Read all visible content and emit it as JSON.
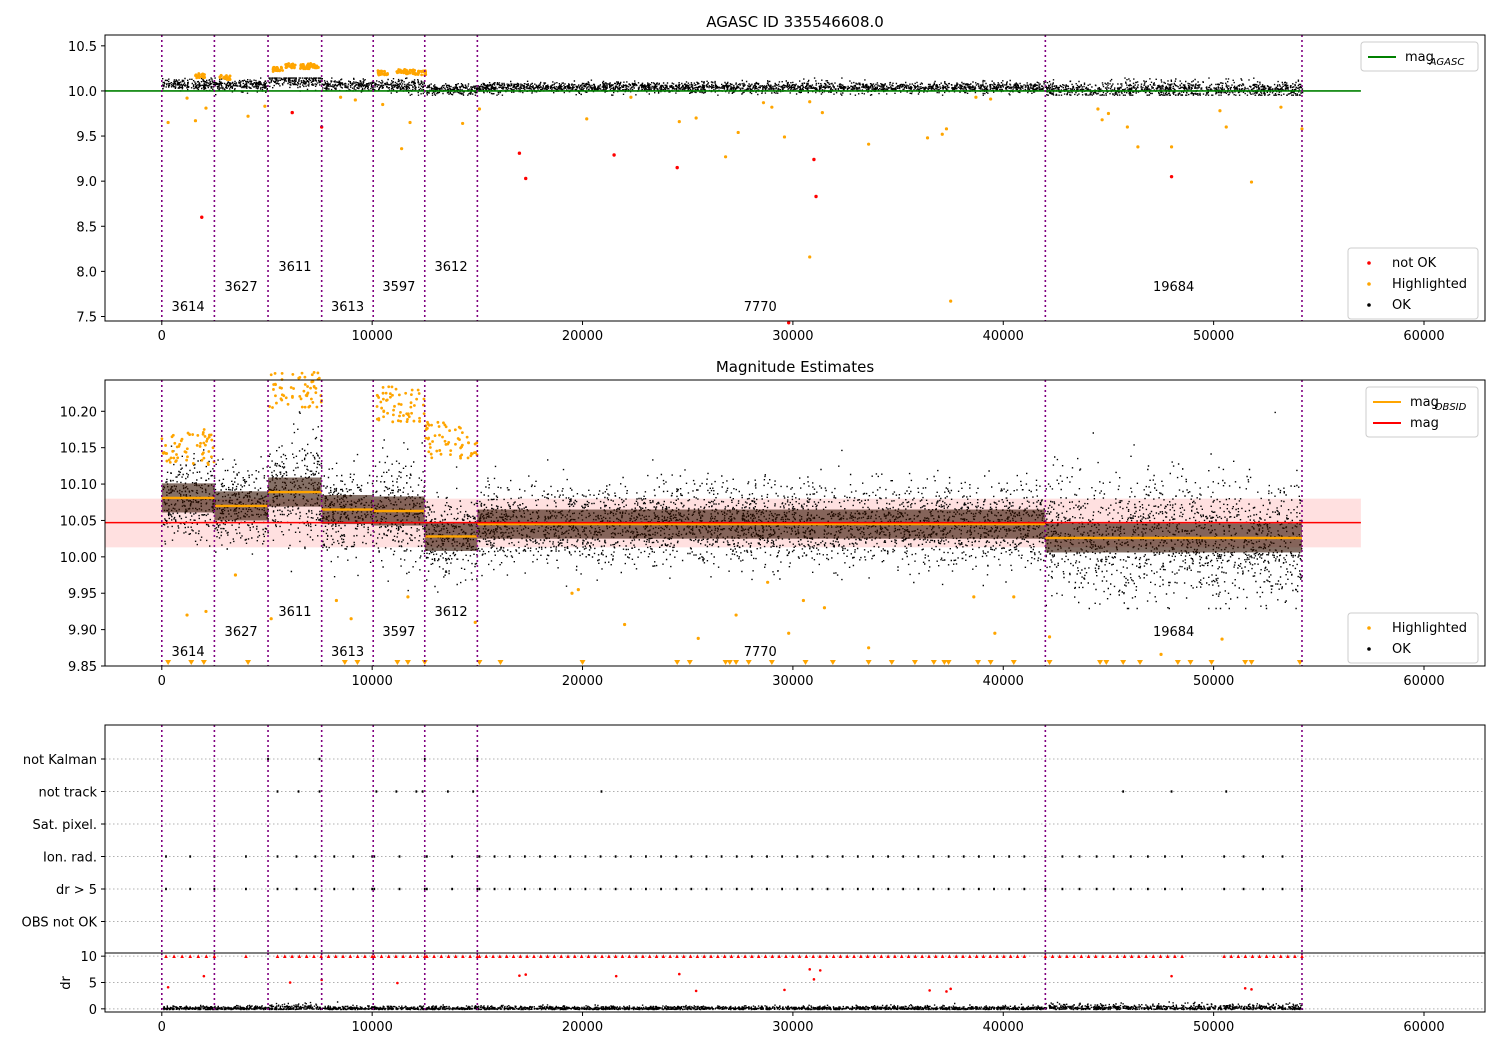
{
  "chart_data": [
    {
      "id": "top",
      "type": "scatter",
      "title": "AGASC ID 335546608.0",
      "xlim": [
        -2700,
        62900
      ],
      "ylim": [
        7.45,
        10.62
      ],
      "xticks": [
        0,
        10000,
        20000,
        30000,
        40000,
        50000,
        60000
      ],
      "yticks": [
        7.5,
        8.0,
        8.5,
        9.0,
        9.5,
        10.0,
        10.5
      ],
      "ytick_labels": [
        "7.5",
        "8.0",
        "8.5",
        "9.0",
        "9.5",
        "10.0",
        "10.5"
      ],
      "reference_line": {
        "name": "mag_AGASC",
        "value": 10.0,
        "x_range": [
          -2700,
          57000
        ],
        "color": "#008000"
      },
      "legend_upper": [
        {
          "label": "mag",
          "subscript": "AGASC",
          "kind": "line",
          "color": "#008000"
        }
      ],
      "legend_lower": [
        {
          "label": "not OK",
          "kind": "point",
          "color": "#ff0000"
        },
        {
          "label": "Highlighted",
          "kind": "point",
          "color": "#ffa500"
        },
        {
          "label": "OK",
          "kind": "point",
          "color": "#000000"
        }
      ],
      "segments": [
        {
          "start": 0,
          "end": 2500,
          "level": 10.08,
          "spread": 0.03
        },
        {
          "start": 2500,
          "end": 5050,
          "level": 10.07,
          "spread": 0.03
        },
        {
          "start": 5050,
          "end": 7600,
          "level": 10.12,
          "spread": 0.04
        },
        {
          "start": 7600,
          "end": 10050,
          "level": 10.07,
          "spread": 0.03
        },
        {
          "start": 10050,
          "end": 12500,
          "level": 10.06,
          "spread": 0.04
        },
        {
          "start": 12500,
          "end": 15000,
          "level": 10.02,
          "spread": 0.03
        },
        {
          "start": 15000,
          "end": 42000,
          "level": 10.045,
          "spread": 0.03
        },
        {
          "start": 42000,
          "end": 54200,
          "level": 10.025,
          "spread": 0.045
        }
      ],
      "highlighted_points": [
        [
          300,
          9.65
        ],
        [
          1200,
          9.92
        ],
        [
          1600,
          9.67
        ],
        [
          2100,
          9.81
        ],
        [
          4100,
          9.72
        ],
        [
          4900,
          9.83
        ],
        [
          8500,
          9.93
        ],
        [
          9200,
          9.9
        ],
        [
          10500,
          9.85
        ],
        [
          11400,
          9.36
        ],
        [
          11800,
          9.65
        ],
        [
          14300,
          9.64
        ],
        [
          15100,
          9.8
        ],
        [
          20200,
          9.69
        ],
        [
          22300,
          9.93
        ],
        [
          24600,
          9.66
        ],
        [
          25400,
          9.7
        ],
        [
          26800,
          9.27
        ],
        [
          27400,
          9.54
        ],
        [
          28600,
          9.87
        ],
        [
          29000,
          9.82
        ],
        [
          29600,
          9.49
        ],
        [
          30800,
          9.88
        ],
        [
          30800,
          8.16
        ],
        [
          31400,
          9.76
        ],
        [
          33600,
          9.41
        ],
        [
          36400,
          9.48
        ],
        [
          37100,
          9.52
        ],
        [
          37300,
          9.58
        ],
        [
          37500,
          7.67
        ],
        [
          38700,
          9.93
        ],
        [
          39400,
          9.91
        ],
        [
          44500,
          9.8
        ],
        [
          44700,
          9.68
        ],
        [
          45000,
          9.75
        ],
        [
          45900,
          9.6
        ],
        [
          46400,
          9.38
        ],
        [
          48000,
          9.38
        ],
        [
          50300,
          9.78
        ],
        [
          50600,
          9.6
        ],
        [
          51800,
          8.99
        ],
        [
          53200,
          9.82
        ],
        [
          54200,
          9.58
        ]
      ],
      "highlighted_bumps": [
        [
          5500,
          10.24
        ],
        [
          6100,
          10.28
        ],
        [
          6800,
          10.27
        ],
        [
          7200,
          10.28
        ],
        [
          10500,
          10.2
        ],
        [
          11400,
          10.22
        ],
        [
          11800,
          10.21
        ],
        [
          12300,
          10.2
        ],
        [
          3000,
          10.15
        ],
        [
          1800,
          10.17
        ]
      ],
      "notok_points": [
        [
          1900,
          8.6
        ],
        [
          6200,
          9.76
        ],
        [
          7600,
          9.6
        ],
        [
          17000,
          9.31
        ],
        [
          17300,
          9.03
        ],
        [
          21500,
          9.29
        ],
        [
          24500,
          9.15
        ],
        [
          29800,
          7.43
        ],
        [
          31000,
          9.24
        ],
        [
          31100,
          8.83
        ],
        [
          48000,
          9.05
        ]
      ],
      "obsid_labels": [
        {
          "text": "3614",
          "x": 1250,
          "row": 3
        },
        {
          "text": "3627",
          "x": 3770,
          "row": 2
        },
        {
          "text": "3611",
          "x": 6330,
          "row": 1
        },
        {
          "text": "3613",
          "x": 8830,
          "row": 3
        },
        {
          "text": "3597",
          "x": 11270,
          "row": 2
        },
        {
          "text": "3612",
          "x": 13750,
          "row": 1
        },
        {
          "text": "7770",
          "x": 28450,
          "row": 3
        },
        {
          "text": "19684",
          "x": 48100,
          "row": 2
        }
      ]
    },
    {
      "id": "mid",
      "type": "scatter",
      "title": "Magnitude Estimates",
      "xlim": [
        -2700,
        62900
      ],
      "ylim": [
        9.85,
        10.243
      ],
      "xticks": [
        0,
        10000,
        20000,
        30000,
        40000,
        50000,
        60000
      ],
      "yticks": [
        9.85,
        9.9,
        9.95,
        10.0,
        10.05,
        10.1,
        10.15,
        10.2
      ],
      "ytick_labels": [
        "9.85",
        "9.90",
        "9.95",
        "10.00",
        "10.05",
        "10.10",
        "10.15",
        "10.20"
      ],
      "mean_line": {
        "name": "mag",
        "value": 10.047,
        "band": [
          10.013,
          10.08
        ],
        "x_range": [
          -2700,
          57000
        ],
        "color": "#ff0000"
      },
      "obsid_mags": [
        {
          "start": 0,
          "end": 2500,
          "value": 10.081
        },
        {
          "start": 2500,
          "end": 5050,
          "value": 10.07
        },
        {
          "start": 5050,
          "end": 7600,
          "value": 10.089
        },
        {
          "start": 7600,
          "end": 10050,
          "value": 10.065
        },
        {
          "start": 10050,
          "end": 12500,
          "value": 10.063
        },
        {
          "start": 12500,
          "end": 15000,
          "value": 10.028
        },
        {
          "start": 15000,
          "end": 42000,
          "value": 10.045
        },
        {
          "start": 42000,
          "end": 54200,
          "value": 10.026
        }
      ],
      "legend_upper": [
        {
          "label": "mag",
          "subscript": "OBSID",
          "kind": "line",
          "color": "#ffa500"
        },
        {
          "label": "mag",
          "subscript": "",
          "kind": "line",
          "color": "#ff0000"
        }
      ],
      "legend_lower": [
        {
          "label": "Highlighted",
          "kind": "point",
          "color": "#ffa500"
        },
        {
          "label": "OK",
          "kind": "point",
          "color": "#000000"
        }
      ],
      "highlighted_points": [
        [
          1200,
          9.92
        ],
        [
          2100,
          9.925
        ],
        [
          3500,
          9.975
        ],
        [
          5200,
          9.915
        ],
        [
          8300,
          9.94
        ],
        [
          9000,
          9.915
        ],
        [
          11700,
          9.945
        ],
        [
          14900,
          9.91
        ],
        [
          19500,
          9.95
        ],
        [
          19800,
          9.955
        ],
        [
          22000,
          9.907
        ],
        [
          25500,
          9.888
        ],
        [
          27300,
          9.92
        ],
        [
          28800,
          9.965
        ],
        [
          29800,
          9.895
        ],
        [
          30500,
          9.94
        ],
        [
          31500,
          9.93
        ],
        [
          33600,
          9.875
        ],
        [
          38600,
          9.945
        ],
        [
          39600,
          9.895
        ],
        [
          40500,
          9.945
        ],
        [
          42200,
          9.89
        ],
        [
          47500,
          9.866
        ],
        [
          50400,
          9.887
        ]
      ],
      "bottom_markers_x": [
        300,
        1400,
        2000,
        4100,
        8700,
        9300,
        11200,
        11700,
        12500,
        15100,
        16100,
        20000,
        24500,
        25100,
        26800,
        27000,
        27300,
        27900,
        29000,
        30600,
        31900,
        33600,
        34700,
        35800,
        36700,
        37200,
        37400,
        38800,
        39400,
        40500,
        42200,
        44600,
        44900,
        45700,
        46500,
        48300,
        48900,
        49900,
        51500,
        51800,
        54100
      ],
      "obsid_labels": [
        {
          "text": "3614",
          "x": 1250,
          "row": 3
        },
        {
          "text": "3627",
          "x": 3770,
          "row": 2
        },
        {
          "text": "3611",
          "x": 6330,
          "row": 1
        },
        {
          "text": "3613",
          "x": 8830,
          "row": 3
        },
        {
          "text": "3597",
          "x": 11270,
          "row": 2
        },
        {
          "text": "3612",
          "x": 13750,
          "row": 1
        },
        {
          "text": "7770",
          "x": 28450,
          "row": 3
        },
        {
          "text": "19684",
          "x": 48100,
          "row": 2
        }
      ]
    },
    {
      "id": "flags",
      "type": "scatter",
      "xlim": [
        -2700,
        62900
      ],
      "categories": [
        "not Kalman",
        "not track",
        "Sat. pixel.",
        "Ion. rad.",
        "dr > 5",
        "OBS not OK"
      ],
      "flag_ranges": [
        {
          "category": "not Kalman",
          "ranges": [
            [
              5050,
              5150
            ],
            [
              7500,
              7600
            ],
            [
              12500,
              12600
            ],
            [
              15000,
              15100
            ]
          ]
        },
        {
          "category": "not track",
          "ranges": [
            [
              5500,
              7500
            ],
            [
              10200,
              12100
            ],
            [
              12400,
              14800
            ],
            [
              20900,
              21100
            ],
            [
              45700,
              45800
            ],
            [
              48000,
              48100
            ],
            [
              50600,
              50700
            ]
          ]
        },
        {
          "category": "Sat. pixel.",
          "ranges": []
        },
        {
          "category": "Ion. rad.",
          "ranges": [
            [
              200,
              2500
            ],
            [
              4000,
              4200
            ],
            [
              5500,
              10000
            ],
            [
              10100,
              12500
            ],
            [
              12600,
              15000
            ],
            [
              15100,
              41000
            ],
            [
              42000,
              48500
            ],
            [
              50500,
              54200
            ]
          ]
        },
        {
          "category": "dr > 5",
          "ranges": [
            [
              200,
              2500
            ],
            [
              4000,
              4200
            ],
            [
              5500,
              10000
            ],
            [
              10100,
              12500
            ],
            [
              12600,
              15000
            ],
            [
              15100,
              41000
            ],
            [
              42000,
              48500
            ],
            [
              50500,
              54200
            ]
          ]
        },
        {
          "category": "OBS not OK",
          "ranges": []
        }
      ]
    },
    {
      "id": "dr",
      "type": "scatter",
      "ylabel": "dr",
      "xlim": [
        -2700,
        62900
      ],
      "ylim": [
        -0.6,
        10.6
      ],
      "xticks": [
        0,
        10000,
        20000,
        30000,
        40000,
        50000,
        60000
      ],
      "yticks": [
        0,
        5,
        10
      ],
      "ytick_labels": [
        "0",
        "5",
        "10"
      ],
      "red_points": [
        [
          300,
          4.1
        ],
        [
          2000,
          6.2
        ],
        [
          6100,
          5.0
        ],
        [
          7600,
          5.5
        ],
        [
          11200,
          4.9
        ],
        [
          17000,
          6.3
        ],
        [
          17300,
          6.5
        ],
        [
          21600,
          6.2
        ],
        [
          24600,
          6.6
        ],
        [
          25400,
          3.4
        ],
        [
          29600,
          3.6
        ],
        [
          30800,
          7.5
        ],
        [
          31300,
          7.3
        ],
        [
          31000,
          5.6
        ],
        [
          36500,
          3.5
        ],
        [
          37300,
          3.3
        ],
        [
          37500,
          3.8
        ],
        [
          48000,
          6.2
        ],
        [
          51500,
          3.9
        ],
        [
          51800,
          3.7
        ]
      ]
    }
  ],
  "obsid_boundaries": [
    0,
    2500,
    5050,
    7600,
    10050,
    12500,
    15000,
    42000,
    54200
  ]
}
